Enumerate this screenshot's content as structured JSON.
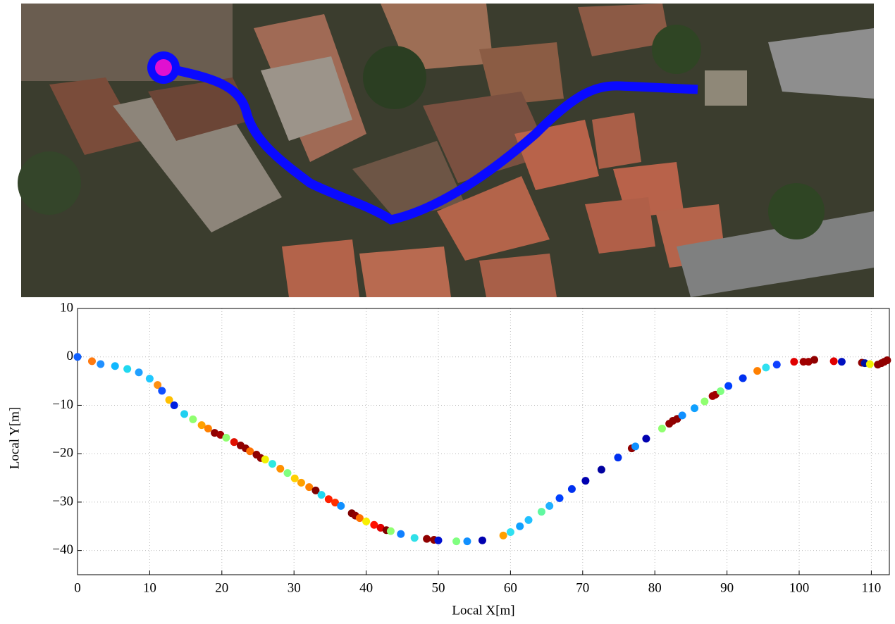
{
  "chart_data": {
    "type": "scatter",
    "xlabel": "Local X[m]",
    "ylabel": "Local Y[m]",
    "xlim": [
      0,
      112.5
    ],
    "ylim": [
      -45,
      10
    ],
    "xticks": [
      0,
      10,
      20,
      30,
      40,
      50,
      60,
      70,
      80,
      90,
      100,
      110
    ],
    "yticks": [
      10,
      0,
      {
        "value": -10,
        "label": "−10"
      },
      {
        "value": -20,
        "label": "−20"
      },
      {
        "value": -30,
        "label": "−30"
      },
      {
        "value": -40,
        "label": "−40"
      }
    ],
    "grid": true,
    "x": [
      0,
      2.0,
      3.2,
      5.2,
      6.9,
      8.5,
      10.0,
      11.1,
      11.7,
      12.7,
      13.4,
      14.8,
      16.0,
      17.2,
      18.1,
      19.0,
      19.8,
      20.6,
      21.7,
      22.6,
      23.3,
      23.9,
      24.8,
      25.4,
      26.0,
      27.0,
      28.1,
      29.1,
      30.1,
      31.0,
      32.1,
      33.0,
      33.8,
      34.8,
      35.7,
      36.5,
      38.0,
      38.5,
      39.1,
      40.0,
      41.1,
      42.0,
      42.8,
      43.4,
      44.8,
      46.7,
      48.4,
      49.4,
      50.0,
      52.5,
      54.0,
      56.1,
      59.0,
      60.0,
      61.3,
      62.5,
      64.3,
      65.4,
      66.8,
      68.5,
      70.4,
      72.6,
      74.9,
      76.8,
      77.3,
      78.8,
      81.0,
      82.0,
      82.5,
      83.1,
      83.8,
      85.5,
      86.9,
      88.0,
      88.4,
      89.1,
      90.2,
      92.2,
      94.2,
      95.4,
      96.9,
      99.3,
      100.6,
      101.3,
      102.1,
      104.8,
      105.9,
      108.7,
      109.1,
      109.8,
      110.9,
      111.4,
      111.8,
      112.2
    ],
    "values": [
      0,
      -0.9,
      -1.5,
      -1.9,
      -2.5,
      -3.2,
      -4.5,
      -5.8,
      -7.0,
      -8.9,
      -10.0,
      -11.8,
      -12.9,
      -14.1,
      -14.8,
      -15.7,
      -16.1,
      -16.7,
      -17.6,
      -18.3,
      -18.9,
      -19.5,
      -20.2,
      -20.9,
      -21.2,
      -22.1,
      -23.1,
      -24.0,
      -25.1,
      -26.0,
      -26.9,
      -27.6,
      -28.5,
      -29.4,
      -30.1,
      -30.8,
      -32.3,
      -32.8,
      -33.3,
      -34.0,
      -34.7,
      -35.3,
      -35.8,
      -36.0,
      -36.6,
      -37.4,
      -37.6,
      -37.8,
      -37.9,
      -38.1,
      -38.1,
      -37.9,
      -36.9,
      -36.2,
      -35.0,
      -33.7,
      -32.0,
      -30.8,
      -29.2,
      -27.3,
      -25.6,
      -23.3,
      -20.8,
      -18.9,
      -18.5,
      -16.9,
      -14.8,
      -13.8,
      -13.2,
      -12.8,
      -12.1,
      -10.6,
      -9.2,
      -8.1,
      -7.8,
      -7.1,
      -6.0,
      -4.4,
      -2.9,
      -2.2,
      -1.6,
      -1.0,
      -1.0,
      -1.0,
      -0.6,
      -0.9,
      -1.0,
      -1.2,
      -1.3,
      -1.5,
      -1.6,
      -1.3,
      -1.0,
      -0.7
    ],
    "colors": [
      "#1060ff",
      "#ff7a10",
      "#2090ff",
      "#10b8ff",
      "#20d8f0",
      "#20a0ff",
      "#20c8ff",
      "#ff9010",
      "#1050ff",
      "#ffc000",
      "#0020e0",
      "#20d0f0",
      "#90ff70",
      "#ffa000",
      "#ff8000",
      "#900000",
      "#a00000",
      "#90ff70",
      "#e01000",
      "#900000",
      "#900000",
      "#ff7000",
      "#900000",
      "#900000",
      "#f0f000",
      "#30e8e0",
      "#ff9000",
      "#80ff80",
      "#ffd000",
      "#ffa000",
      "#ff8000",
      "#800000",
      "#20d8f0",
      "#ff2000",
      "#ff3000",
      "#1090ff",
      "#800000",
      "#900000",
      "#ff7000",
      "#f8f000",
      "#ff1000",
      "#e00000",
      "#800000",
      "#90ff70",
      "#1080ff",
      "#30e0e8",
      "#900000",
      "#900000",
      "#0010d0",
      "#80ff80",
      "#1090ff",
      "#0000b0",
      "#ffa000",
      "#30e0f0",
      "#10a0ff",
      "#20c0ff",
      "#60f8a0",
      "#20b0ff",
      "#0040ff",
      "#0030f0",
      "#0000b0",
      "#0000a0",
      "#0030f0",
      "#900000",
      "#1090ff",
      "#0000b0",
      "#90ff70",
      "#900000",
      "#900000",
      "#900000",
      "#1090ff",
      "#10a0ff",
      "#90ff70",
      "#a00000",
      "#a00000",
      "#80ff80",
      "#0040ff",
      "#0030f0",
      "#ff8000",
      "#30e0f0",
      "#1040ff",
      "#e00000",
      "#a00000",
      "#a00000",
      "#900000",
      "#e00000",
      "#0010c0",
      "#900000",
      "#0010a0",
      "#f0f000",
      "#900000",
      "#900000",
      "#900000",
      "#900000"
    ]
  }
}
